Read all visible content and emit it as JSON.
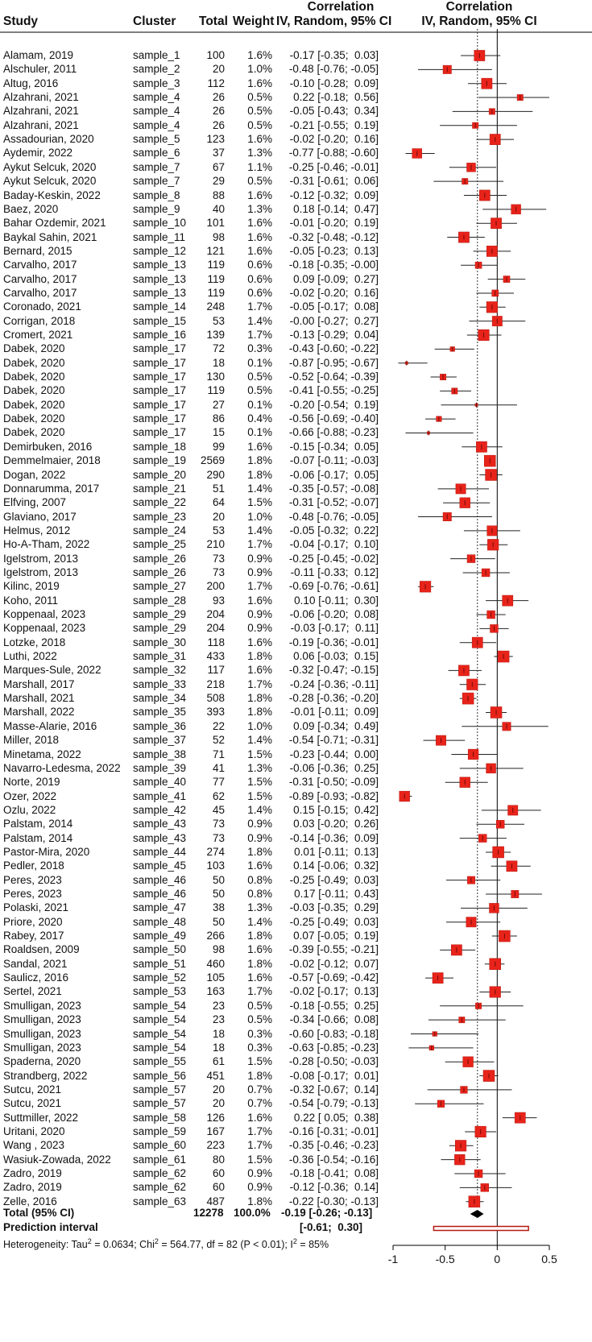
{
  "headers": {
    "study": "Study",
    "cluster": "Cluster",
    "total": "Total",
    "weight": "Weight",
    "ci_line1": "Correlation",
    "ci_line2": "IV, Random, 95% CI",
    "plot_line1": "Correlation",
    "plot_line2": "IV, Random, 95% CI"
  },
  "rows": [
    {
      "study": "Alamam, 2019",
      "cluster": "sample_1",
      "total": "100",
      "weight": "1.6%",
      "est": -0.17,
      "lo": -0.35,
      "hi": 0.03,
      "ci": "-0.17 [-0.35;  0.03]"
    },
    {
      "study": "Alschuler, 2011",
      "cluster": "sample_2",
      "total": "20",
      "weight": "1.0%",
      "est": -0.48,
      "lo": -0.76,
      "hi": -0.05,
      "ci": "-0.48 [-0.76; -0.05]"
    },
    {
      "study": "Altug, 2016",
      "cluster": "sample_3",
      "total": "112",
      "weight": "1.6%",
      "est": -0.1,
      "lo": -0.28,
      "hi": 0.09,
      "ci": "-0.10 [-0.28;  0.09]"
    },
    {
      "study": "Alzahrani, 2021",
      "cluster": "sample_4",
      "total": "26",
      "weight": "0.5%",
      "est": 0.22,
      "lo": -0.18,
      "hi": 0.56,
      "ci": "0.22 [-0.18;  0.56]"
    },
    {
      "study": "Alzahrani, 2021",
      "cluster": "sample_4",
      "total": "26",
      "weight": "0.5%",
      "est": -0.05,
      "lo": -0.43,
      "hi": 0.34,
      "ci": "-0.05 [-0.43;  0.34]"
    },
    {
      "study": "Alzahrani, 2021",
      "cluster": "sample_4",
      "total": "26",
      "weight": "0.5%",
      "est": -0.21,
      "lo": -0.55,
      "hi": 0.19,
      "ci": "-0.21 [-0.55;  0.19]"
    },
    {
      "study": "Assadourian, 2020",
      "cluster": "sample_5",
      "total": "123",
      "weight": "1.6%",
      "est": -0.02,
      "lo": -0.2,
      "hi": 0.16,
      "ci": "-0.02 [-0.20;  0.16]"
    },
    {
      "study": "Aydemir, 2022",
      "cluster": "sample_6",
      "total": "37",
      "weight": "1.3%",
      "est": -0.77,
      "lo": -0.88,
      "hi": -0.6,
      "ci": "-0.77 [-0.88; -0.60]"
    },
    {
      "study": "Aykut Selcuk, 2020",
      "cluster": "sample_7",
      "total": "67",
      "weight": "1.1%",
      "est": -0.25,
      "lo": -0.46,
      "hi": -0.01,
      "ci": "-0.25 [-0.46; -0.01]"
    },
    {
      "study": "Aykut Selcuk, 2020",
      "cluster": "sample_7",
      "total": "29",
      "weight": "0.5%",
      "est": -0.31,
      "lo": -0.61,
      "hi": 0.06,
      "ci": "-0.31 [-0.61;  0.06]"
    },
    {
      "study": "Baday-Keskin, 2022",
      "cluster": "sample_8",
      "total": "88",
      "weight": "1.6%",
      "est": -0.12,
      "lo": -0.32,
      "hi": 0.09,
      "ci": "-0.12 [-0.32;  0.09]"
    },
    {
      "study": "Baez, 2020",
      "cluster": "sample_9",
      "total": "40",
      "weight": "1.3%",
      "est": 0.18,
      "lo": -0.14,
      "hi": 0.47,
      "ci": "0.18 [-0.14;  0.47]"
    },
    {
      "study": "Bahar Ozdemir, 2021",
      "cluster": "sample_10",
      "total": "101",
      "weight": "1.6%",
      "est": -0.01,
      "lo": -0.2,
      "hi": 0.19,
      "ci": "-0.01 [-0.20;  0.19]"
    },
    {
      "study": "Baykal Sahin, 2021",
      "cluster": "sample_11",
      "total": "98",
      "weight": "1.6%",
      "est": -0.32,
      "lo": -0.48,
      "hi": -0.12,
      "ci": "-0.32 [-0.48; -0.12]"
    },
    {
      "study": "Bernard, 2015",
      "cluster": "sample_12",
      "total": "121",
      "weight": "1.6%",
      "est": -0.05,
      "lo": -0.23,
      "hi": 0.13,
      "ci": "-0.05 [-0.23;  0.13]"
    },
    {
      "study": "Carvalho, 2017",
      "cluster": "sample_13",
      "total": "119",
      "weight": "0.6%",
      "est": -0.18,
      "lo": -0.35,
      "hi": -0.0,
      "ci": "-0.18 [-0.35; -0.00]"
    },
    {
      "study": "Carvalho, 2017",
      "cluster": "sample_13",
      "total": "119",
      "weight": "0.6%",
      "est": 0.09,
      "lo": -0.09,
      "hi": 0.27,
      "ci": "0.09 [-0.09;  0.27]"
    },
    {
      "study": "Carvalho, 2017",
      "cluster": "sample_13",
      "total": "119",
      "weight": "0.6%",
      "est": -0.02,
      "lo": -0.2,
      "hi": 0.16,
      "ci": "-0.02 [-0.20;  0.16]"
    },
    {
      "study": "Coronado, 2021",
      "cluster": "sample_14",
      "total": "248",
      "weight": "1.7%",
      "est": -0.05,
      "lo": -0.17,
      "hi": 0.08,
      "ci": "-0.05 [-0.17;  0.08]"
    },
    {
      "study": "Corrigan, 2018",
      "cluster": "sample_15",
      "total": "53",
      "weight": "1.4%",
      "est": -0.0,
      "lo": -0.27,
      "hi": 0.27,
      "ci": "-0.00 [-0.27;  0.27]"
    },
    {
      "study": "Cromert, 2021",
      "cluster": "sample_16",
      "total": "139",
      "weight": "1.7%",
      "est": -0.13,
      "lo": -0.29,
      "hi": 0.04,
      "ci": "-0.13 [-0.29;  0.04]"
    },
    {
      "study": "Dabek, 2020",
      "cluster": "sample_17",
      "total": "72",
      "weight": "0.3%",
      "est": -0.43,
      "lo": -0.6,
      "hi": -0.22,
      "ci": "-0.43 [-0.60; -0.22]"
    },
    {
      "study": "Dabek, 2020",
      "cluster": "sample_17",
      "total": "18",
      "weight": "0.1%",
      "est": -0.87,
      "lo": -0.95,
      "hi": -0.67,
      "ci": "-0.87 [-0.95; -0.67]"
    },
    {
      "study": "Dabek, 2020",
      "cluster": "sample_17",
      "total": "130",
      "weight": "0.5%",
      "est": -0.52,
      "lo": -0.64,
      "hi": -0.39,
      "ci": "-0.52 [-0.64; -0.39]"
    },
    {
      "study": "Dabek, 2020",
      "cluster": "sample_17",
      "total": "119",
      "weight": "0.5%",
      "est": -0.41,
      "lo": -0.55,
      "hi": -0.25,
      "ci": "-0.41 [-0.55; -0.25]"
    },
    {
      "study": "Dabek, 2020",
      "cluster": "sample_17",
      "total": "27",
      "weight": "0.1%",
      "est": -0.2,
      "lo": -0.54,
      "hi": 0.19,
      "ci": "-0.20 [-0.54;  0.19]"
    },
    {
      "study": "Dabek, 2020",
      "cluster": "sample_17",
      "total": "86",
      "weight": "0.4%",
      "est": -0.56,
      "lo": -0.69,
      "hi": -0.4,
      "ci": "-0.56 [-0.69; -0.40]"
    },
    {
      "study": "Dabek, 2020",
      "cluster": "sample_17",
      "total": "15",
      "weight": "0.1%",
      "est": -0.66,
      "lo": -0.88,
      "hi": -0.23,
      "ci": "-0.66 [-0.88; -0.23]"
    },
    {
      "study": "Demirbuken, 2016",
      "cluster": "sample_18",
      "total": "99",
      "weight": "1.6%",
      "est": -0.15,
      "lo": -0.34,
      "hi": 0.05,
      "ci": "-0.15 [-0.34;  0.05]"
    },
    {
      "study": "Demmelmaier, 2018",
      "cluster": "sample_19",
      "total": "2569",
      "weight": "1.8%",
      "est": -0.07,
      "lo": -0.11,
      "hi": -0.03,
      "ci": "-0.07 [-0.11; -0.03]"
    },
    {
      "study": "Dogan, 2022",
      "cluster": "sample_20",
      "total": "290",
      "weight": "1.8%",
      "est": -0.06,
      "lo": -0.17,
      "hi": 0.05,
      "ci": "-0.06 [-0.17;  0.05]"
    },
    {
      "study": "Donnarumma, 2017",
      "cluster": "sample_21",
      "total": "51",
      "weight": "1.4%",
      "est": -0.35,
      "lo": -0.57,
      "hi": -0.08,
      "ci": "-0.35 [-0.57; -0.08]"
    },
    {
      "study": "Elfving, 2007",
      "cluster": "sample_22",
      "total": "64",
      "weight": "1.5%",
      "est": -0.31,
      "lo": -0.52,
      "hi": -0.07,
      "ci": "-0.31 [-0.52; -0.07]"
    },
    {
      "study": "Glaviano, 2017",
      "cluster": "sample_23",
      "total": "20",
      "weight": "1.0%",
      "est": -0.48,
      "lo": -0.76,
      "hi": -0.05,
      "ci": "-0.48 [-0.76; -0.05]"
    },
    {
      "study": "Helmus, 2012",
      "cluster": "sample_24",
      "total": "53",
      "weight": "1.4%",
      "est": -0.05,
      "lo": -0.32,
      "hi": 0.22,
      "ci": "-0.05 [-0.32;  0.22]"
    },
    {
      "study": "Ho-A-Tham, 2022",
      "cluster": "sample_25",
      "total": "210",
      "weight": "1.7%",
      "est": -0.04,
      "lo": -0.17,
      "hi": 0.1,
      "ci": "-0.04 [-0.17;  0.10]"
    },
    {
      "study": "Igelstrom, 2013",
      "cluster": "sample_26",
      "total": "73",
      "weight": "0.9%",
      "est": -0.25,
      "lo": -0.45,
      "hi": -0.02,
      "ci": "-0.25 [-0.45; -0.02]"
    },
    {
      "study": "Igelstrom, 2013",
      "cluster": "sample_26",
      "total": "73",
      "weight": "0.9%",
      "est": -0.11,
      "lo": -0.33,
      "hi": 0.12,
      "ci": "-0.11 [-0.33;  0.12]"
    },
    {
      "study": "Kilinc, 2019",
      "cluster": "sample_27",
      "total": "200",
      "weight": "1.7%",
      "est": -0.69,
      "lo": -0.76,
      "hi": -0.61,
      "ci": "-0.69 [-0.76; -0.61]"
    },
    {
      "study": "Koho, 2011",
      "cluster": "sample_28",
      "total": "93",
      "weight": "1.6%",
      "est": 0.1,
      "lo": -0.11,
      "hi": 0.3,
      "ci": "0.10 [-0.11;  0.30]"
    },
    {
      "study": "Koppenaal, 2023",
      "cluster": "sample_29",
      "total": "204",
      "weight": "0.9%",
      "est": -0.06,
      "lo": -0.2,
      "hi": 0.08,
      "ci": "-0.06 [-0.20;  0.08]"
    },
    {
      "study": "Koppenaal, 2023",
      "cluster": "sample_29",
      "total": "204",
      "weight": "0.9%",
      "est": -0.03,
      "lo": -0.17,
      "hi": 0.11,
      "ci": "-0.03 [-0.17;  0.11]"
    },
    {
      "study": "Lotzke, 2018",
      "cluster": "sample_30",
      "total": "118",
      "weight": "1.6%",
      "est": -0.19,
      "lo": -0.36,
      "hi": -0.01,
      "ci": "-0.19 [-0.36; -0.01]"
    },
    {
      "study": "Luthi, 2022",
      "cluster": "sample_31",
      "total": "433",
      "weight": "1.8%",
      "est": 0.06,
      "lo": -0.03,
      "hi": 0.15,
      "ci": "0.06 [-0.03;  0.15]"
    },
    {
      "study": "Marques-Sule, 2022",
      "cluster": "sample_32",
      "total": "117",
      "weight": "1.6%",
      "est": -0.32,
      "lo": -0.47,
      "hi": -0.15,
      "ci": "-0.32 [-0.47; -0.15]"
    },
    {
      "study": "Marshall, 2017",
      "cluster": "sample_33",
      "total": "218",
      "weight": "1.7%",
      "est": -0.24,
      "lo": -0.36,
      "hi": -0.11,
      "ci": "-0.24 [-0.36; -0.11]"
    },
    {
      "study": "Marshall, 2021",
      "cluster": "sample_34",
      "total": "508",
      "weight": "1.8%",
      "est": -0.28,
      "lo": -0.36,
      "hi": -0.2,
      "ci": "-0.28 [-0.36; -0.20]"
    },
    {
      "study": "Marshall, 2022",
      "cluster": "sample_35",
      "total": "393",
      "weight": "1.8%",
      "est": -0.01,
      "lo": -0.11,
      "hi": 0.09,
      "ci": "-0.01 [-0.11;  0.09]"
    },
    {
      "study": "Masse-Alarie, 2016",
      "cluster": "sample_36",
      "total": "22",
      "weight": "1.0%",
      "est": 0.09,
      "lo": -0.34,
      "hi": 0.49,
      "ci": "0.09 [-0.34;  0.49]"
    },
    {
      "study": "Miller, 2018",
      "cluster": "sample_37",
      "total": "52",
      "weight": "1.4%",
      "est": -0.54,
      "lo": -0.71,
      "hi": -0.31,
      "ci": "-0.54 [-0.71; -0.31]"
    },
    {
      "study": "Minetama, 2022",
      "cluster": "sample_38",
      "total": "71",
      "weight": "1.5%",
      "est": -0.23,
      "lo": -0.44,
      "hi": 0.0,
      "ci": "-0.23 [-0.44;  0.00]"
    },
    {
      "study": "Navarro-Ledesma, 2022",
      "cluster": "sample_39",
      "total": "41",
      "weight": "1.3%",
      "est": -0.06,
      "lo": -0.36,
      "hi": 0.25,
      "ci": "-0.06 [-0.36;  0.25]"
    },
    {
      "study": "Norte, 2019",
      "cluster": "sample_40",
      "total": "77",
      "weight": "1.5%",
      "est": -0.31,
      "lo": -0.5,
      "hi": -0.09,
      "ci": "-0.31 [-0.50; -0.09]"
    },
    {
      "study": "Ozer, 2022",
      "cluster": "sample_41",
      "total": "62",
      "weight": "1.5%",
      "est": -0.89,
      "lo": -0.93,
      "hi": -0.82,
      "ci": "-0.89 [-0.93; -0.82]"
    },
    {
      "study": "Ozlu, 2022",
      "cluster": "sample_42",
      "total": "45",
      "weight": "1.4%",
      "est": 0.15,
      "lo": -0.15,
      "hi": 0.42,
      "ci": "0.15 [-0.15;  0.42]"
    },
    {
      "study": "Palstam, 2014",
      "cluster": "sample_43",
      "total": "73",
      "weight": "0.9%",
      "est": 0.03,
      "lo": -0.2,
      "hi": 0.26,
      "ci": "0.03 [-0.20;  0.26]"
    },
    {
      "study": "Palstam, 2014",
      "cluster": "sample_43",
      "total": "73",
      "weight": "0.9%",
      "est": -0.14,
      "lo": -0.36,
      "hi": 0.09,
      "ci": "-0.14 [-0.36;  0.09]"
    },
    {
      "study": "Pastor-Mira, 2020",
      "cluster": "sample_44",
      "total": "274",
      "weight": "1.8%",
      "est": 0.01,
      "lo": -0.11,
      "hi": 0.13,
      "ci": "0.01 [-0.11;  0.13]"
    },
    {
      "study": "Pedler, 2018",
      "cluster": "sample_45",
      "total": "103",
      "weight": "1.6%",
      "est": 0.14,
      "lo": -0.06,
      "hi": 0.32,
      "ci": "0.14 [-0.06;  0.32]"
    },
    {
      "study": "Peres, 2023",
      "cluster": "sample_46",
      "total": "50",
      "weight": "0.8%",
      "est": -0.25,
      "lo": -0.49,
      "hi": 0.03,
      "ci": "-0.25 [-0.49;  0.03]"
    },
    {
      "study": "Peres, 2023",
      "cluster": "sample_46",
      "total": "50",
      "weight": "0.8%",
      "est": 0.17,
      "lo": -0.11,
      "hi": 0.43,
      "ci": "0.17 [-0.11;  0.43]"
    },
    {
      "study": "Polaski, 2021",
      "cluster": "sample_47",
      "total": "38",
      "weight": "1.3%",
      "est": -0.03,
      "lo": -0.35,
      "hi": 0.29,
      "ci": "-0.03 [-0.35;  0.29]"
    },
    {
      "study": "Priore, 2020",
      "cluster": "sample_48",
      "total": "50",
      "weight": "1.4%",
      "est": -0.25,
      "lo": -0.49,
      "hi": 0.03,
      "ci": "-0.25 [-0.49;  0.03]"
    },
    {
      "study": "Rabey, 2017",
      "cluster": "sample_49",
      "total": "266",
      "weight": "1.8%",
      "est": 0.07,
      "lo": -0.05,
      "hi": 0.19,
      "ci": "0.07 [-0.05;  0.19]"
    },
    {
      "study": "Roaldsen, 2009",
      "cluster": "sample_50",
      "total": "98",
      "weight": "1.6%",
      "est": -0.39,
      "lo": -0.55,
      "hi": -0.21,
      "ci": "-0.39 [-0.55; -0.21]"
    },
    {
      "study": "Sandal, 2021",
      "cluster": "sample_51",
      "total": "460",
      "weight": "1.8%",
      "est": -0.02,
      "lo": -0.12,
      "hi": 0.07,
      "ci": "-0.02 [-0.12;  0.07]"
    },
    {
      "study": "Saulicz, 2016",
      "cluster": "sample_52",
      "total": "105",
      "weight": "1.6%",
      "est": -0.57,
      "lo": -0.69,
      "hi": -0.42,
      "ci": "-0.57 [-0.69; -0.42]"
    },
    {
      "study": "Sertel, 2021",
      "cluster": "sample_53",
      "total": "163",
      "weight": "1.7%",
      "est": -0.02,
      "lo": -0.17,
      "hi": 0.13,
      "ci": "-0.02 [-0.17;  0.13]"
    },
    {
      "study": "Smulligan, 2023",
      "cluster": "sample_54",
      "total": "23",
      "weight": "0.5%",
      "est": -0.18,
      "lo": -0.55,
      "hi": 0.25,
      "ci": "-0.18 [-0.55;  0.25]"
    },
    {
      "study": "Smulligan, 2023",
      "cluster": "sample_54",
      "total": "23",
      "weight": "0.5%",
      "est": -0.34,
      "lo": -0.66,
      "hi": 0.08,
      "ci": "-0.34 [-0.66;  0.08]"
    },
    {
      "study": "Smulligan, 2023",
      "cluster": "sample_54",
      "total": "18",
      "weight": "0.3%",
      "est": -0.6,
      "lo": -0.83,
      "hi": -0.18,
      "ci": "-0.60 [-0.83; -0.18]"
    },
    {
      "study": "Smulligan, 2023",
      "cluster": "sample_54",
      "total": "18",
      "weight": "0.3%",
      "est": -0.63,
      "lo": -0.85,
      "hi": -0.23,
      "ci": "-0.63 [-0.85; -0.23]"
    },
    {
      "study": "Spaderna, 2020",
      "cluster": "sample_55",
      "total": "61",
      "weight": "1.5%",
      "est": -0.28,
      "lo": -0.5,
      "hi": -0.03,
      "ci": "-0.28 [-0.50; -0.03]"
    },
    {
      "study": "Strandberg, 2022",
      "cluster": "sample_56",
      "total": "451",
      "weight": "1.8%",
      "est": -0.08,
      "lo": -0.17,
      "hi": 0.01,
      "ci": "-0.08 [-0.17;  0.01]"
    },
    {
      "study": "Sutcu, 2021",
      "cluster": "sample_57",
      "total": "20",
      "weight": "0.7%",
      "est": -0.32,
      "lo": -0.67,
      "hi": 0.14,
      "ci": "-0.32 [-0.67;  0.14]"
    },
    {
      "study": "Sutcu, 2021",
      "cluster": "sample_57",
      "total": "20",
      "weight": "0.7%",
      "est": -0.54,
      "lo": -0.79,
      "hi": -0.13,
      "ci": "-0.54 [-0.79; -0.13]"
    },
    {
      "study": "Suttmiller, 2022",
      "cluster": "sample_58",
      "total": "126",
      "weight": "1.6%",
      "est": 0.22,
      "lo": 0.05,
      "hi": 0.38,
      "ci": "0.22 [ 0.05;  0.38]"
    },
    {
      "study": "Uritani, 2020",
      "cluster": "sample_59",
      "total": "167",
      "weight": "1.7%",
      "est": -0.16,
      "lo": -0.31,
      "hi": -0.01,
      "ci": "-0.16 [-0.31; -0.01]"
    },
    {
      "study": "Wang , 2023",
      "cluster": "sample_60",
      "total": "223",
      "weight": "1.7%",
      "est": -0.35,
      "lo": -0.46,
      "hi": -0.23,
      "ci": "-0.35 [-0.46; -0.23]"
    },
    {
      "study": "Wasiuk-Zowada, 2022",
      "cluster": "sample_61",
      "total": "80",
      "weight": "1.5%",
      "est": -0.36,
      "lo": -0.54,
      "hi": -0.16,
      "ci": "-0.36 [-0.54; -0.16]"
    },
    {
      "study": "Zadro, 2019",
      "cluster": "sample_62",
      "total": "60",
      "weight": "0.9%",
      "est": -0.18,
      "lo": -0.41,
      "hi": 0.08,
      "ci": "-0.18 [-0.41;  0.08]"
    },
    {
      "study": "Zadro, 2019",
      "cluster": "sample_62",
      "total": "60",
      "weight": "0.9%",
      "est": -0.12,
      "lo": -0.36,
      "hi": 0.14,
      "ci": "-0.12 [-0.36;  0.14]"
    },
    {
      "study": "Zelle, 2016",
      "cluster": "sample_63",
      "total": "487",
      "weight": "1.8%",
      "est": -0.22,
      "lo": -0.3,
      "hi": -0.13,
      "ci": "-0.22 [-0.30; -0.13]"
    }
  ],
  "total": {
    "label": "Total (95% CI)",
    "n": "12278",
    "weight": "100.0%",
    "ci": "-0.19 [-0.26; -0.13]",
    "est": -0.19,
    "lo": -0.26,
    "hi": -0.13
  },
  "prediction": {
    "label": "Prediction interval",
    "ci": "[-0.61;  0.30]",
    "lo": -0.61,
    "hi": 0.3
  },
  "heterogeneity": {
    "prefix": "Heterogeneity: Tau",
    "tau_val": " = 0.0634; Chi",
    "chi_val": " = 564.77, df = 82 (P < 0.01); I",
    "i2_val": " = 85%",
    "sup": "2"
  },
  "colors": {
    "square": "#e8231a",
    "square_edge": "#b51810",
    "line": "#222222",
    "diamond": "#000000",
    "pred": "#b51810"
  },
  "chart_data": {
    "type": "forest",
    "xlim": [
      -1,
      0.5
    ],
    "xticks": [
      -1,
      -0.5,
      0,
      0.5
    ],
    "xtick_labels": [
      "-1",
      "-0.5",
      "0",
      "0.5"
    ],
    "null_line": 0,
    "pooled_line": -0.19,
    "xlabel": "Correlation IV, Random, 95% CI"
  }
}
